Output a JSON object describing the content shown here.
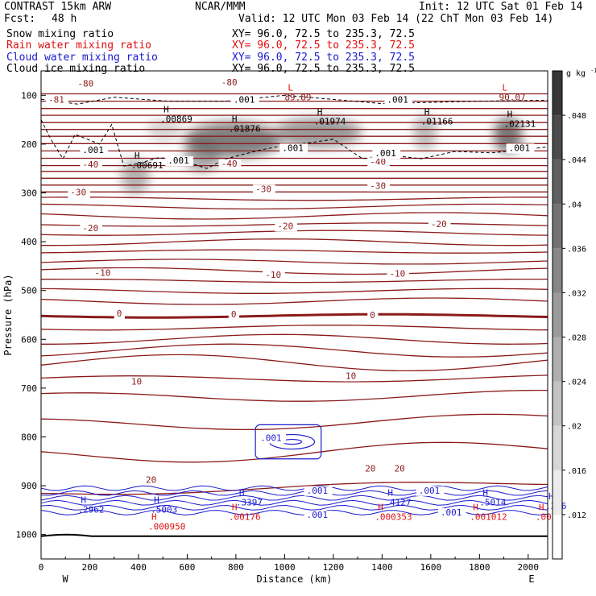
{
  "header": {
    "model": "CONTRAST 15km ARW",
    "fcst_label": "Fcst:",
    "fcst_value": "48 h",
    "center": "NCAR/MMM",
    "init": "Init: 12 UTC Sat 01 Feb 14",
    "valid": "Valid: 12 UTC Mon 03 Feb 14 (22 ChT Mon 03 Feb 14)"
  },
  "legend": [
    {
      "name": "Snow mixing ratio",
      "xy": "XY=  96.0, 72.5 to 235.3, 72.5",
      "color": "#000000"
    },
    {
      "name": "Rain water mixing ratio",
      "xy": "XY=  96.0, 72.5 to 235.3, 72.5",
      "color": "#e01010"
    },
    {
      "name": "Cloud water mixing ratio",
      "xy": "XY=  96.0, 72.5 to 235.3, 72.5",
      "color": "#1a1ad0"
    },
    {
      "name": "Cloud ice mixing ratio",
      "xy": "XY=  96.0, 72.5 to 235.3, 72.5",
      "color": "#000000"
    }
  ],
  "chart_data": {
    "type": "contour",
    "xlabel": "Distance (km)",
    "ylabel": "Pressure (hPa)",
    "xlim": [
      0,
      2080
    ],
    "ylim": [
      1050,
      50
    ],
    "x_ticks": [
      0,
      200,
      400,
      600,
      800,
      1000,
      1200,
      1400,
      1600,
      1800,
      2000
    ],
    "y_ticks": [
      100,
      200,
      300,
      400,
      500,
      600,
      700,
      800,
      900,
      1000
    ],
    "x_end_labels": {
      "left": "W",
      "right": "E"
    },
    "colorbar": {
      "unit": "g kg",
      "unit_exp": "-1",
      "levels": [
        0.012,
        0.016,
        0.02,
        0.024,
        0.028,
        0.032,
        0.036,
        0.04,
        0.044,
        0.048
      ],
      "tick_labels": [
        ".012",
        ".016",
        ".02",
        ".024",
        ".028",
        ".032",
        ".036",
        ".04",
        ".044",
        ".048"
      ]
    },
    "temperature_contour_labels": [
      {
        "text": "-80",
        "x": 150,
        "p": 82
      },
      {
        "text": "-80",
        "x": 740,
        "p": 80
      },
      {
        "text": "-81",
        "x": 30,
        "p": 115
      },
      {
        "text": "-40",
        "x": 170,
        "p": 248
      },
      {
        "text": "-40",
        "x": 740,
        "p": 246
      },
      {
        "text": "-40",
        "x": 1350,
        "p": 242
      },
      {
        "text": "-30",
        "x": 120,
        "p": 305
      },
      {
        "text": "-30",
        "x": 880,
        "p": 298
      },
      {
        "text": "-30",
        "x": 1350,
        "p": 292
      },
      {
        "text": "-20",
        "x": 170,
        "p": 378
      },
      {
        "text": "-20",
        "x": 970,
        "p": 374
      },
      {
        "text": "-20",
        "x": 1600,
        "p": 370
      },
      {
        "text": "-10",
        "x": 220,
        "p": 470
      },
      {
        "text": "-10",
        "x": 920,
        "p": 474
      },
      {
        "text": "-10",
        "x": 1430,
        "p": 472
      },
      {
        "text": "0",
        "x": 310,
        "p": 553
      },
      {
        "text": "0",
        "x": 780,
        "p": 555
      },
      {
        "text": "0",
        "x": 1350,
        "p": 557
      },
      {
        "text": "10",
        "x": 370,
        "p": 693
      },
      {
        "text": "10",
        "x": 1250,
        "p": 681
      },
      {
        "text": "20",
        "x": 430,
        "p": 894
      },
      {
        "text": "20",
        "x": 1330,
        "p": 871
      },
      {
        "text": "20",
        "x": 1450,
        "p": 871
      }
    ],
    "temperature_lines_p_at_left": [
      97,
      112,
      127,
      141,
      156,
      170,
      184,
      199,
      214,
      229,
      244,
      256,
      270,
      284,
      298,
      312,
      328,
      347,
      365,
      382,
      401,
      420,
      441,
      460,
      480,
      501,
      522,
      552,
      576,
      600,
      623,
      648,
      682,
      720,
      776,
      840,
      915
    ],
    "snow_maxima": [
      {
        "label": "H",
        "value": ".00691",
        "x": 370,
        "p": 240
      },
      {
        "label": "H",
        "value": ".00869",
        "x": 490,
        "p": 145
      },
      {
        "label": "H",
        "value": ".01876",
        "x": 770,
        "p": 165
      },
      {
        "label": "H",
        "value": ".01974",
        "x": 1120,
        "p": 150
      },
      {
        "label": "H",
        "value": ".01166",
        "x": 1560,
        "p": 150
      },
      {
        "label": "H",
        "value": ".02131",
        "x": 1900,
        "p": 155
      }
    ],
    "lows": [
      {
        "label": "L",
        "value": "89.89",
        "x": 1000,
        "p": 100
      },
      {
        "label": "L",
        "value": "90.07",
        "x": 1880,
        "p": 100
      }
    ],
    "cloud_ice_labels": [
      {
        "text": ".001",
        "x": 790,
        "p": 115
      },
      {
        "text": ".001",
        "x": 1420,
        "p": 115
      },
      {
        "text": ".001",
        "x": 170,
        "p": 218
      },
      {
        "text": ".001",
        "x": 520,
        "p": 240
      },
      {
        "text": ".001",
        "x": 990,
        "p": 214
      },
      {
        "text": ".001",
        "x": 1370,
        "p": 225
      },
      {
        "text": ".001",
        "x": 1920,
        "p": 214
      }
    ],
    "cloud_water_labels": [
      {
        "text": ".001",
        "x": 900,
        "p": 808
      },
      {
        "text": ".001",
        "x": 1090,
        "p": 916
      },
      {
        "text": ".001",
        "x": 1090,
        "p": 966
      },
      {
        "text": ".001",
        "x": 1550,
        "p": 916
      },
      {
        "text": ".001",
        "x": 1640,
        "p": 961
      }
    ],
    "cloud_water_maxima": [
      {
        "label": "H",
        "value": ".2962",
        "x": 150,
        "p": 945
      },
      {
        "label": "H",
        "value": ".5003",
        "x": 450,
        "p": 945
      },
      {
        "label": "H",
        "value": ".3397",
        "x": 800,
        "p": 930
      },
      {
        "label": "H",
        "value": ".4127",
        "x": 1410,
        "p": 930
      },
      {
        "label": "H",
        "value": ".5014",
        "x": 1800,
        "p": 930
      },
      {
        "label": "H",
        "value": ".376",
        "x": 2070,
        "p": 938
      }
    ],
    "rain_maxima": [
      {
        "label": "H",
        "value": ".000950",
        "x": 440,
        "p": 980
      },
      {
        "label": "H",
        "value": ".00176",
        "x": 770,
        "p": 960
      },
      {
        "label": "H",
        "value": ".000353",
        "x": 1370,
        "p": 960
      },
      {
        "label": "H",
        "value": ".001012",
        "x": 1760,
        "p": 960
      },
      {
        "label": "H",
        "value": ".0001",
        "x": 2030,
        "p": 960
      }
    ]
  }
}
